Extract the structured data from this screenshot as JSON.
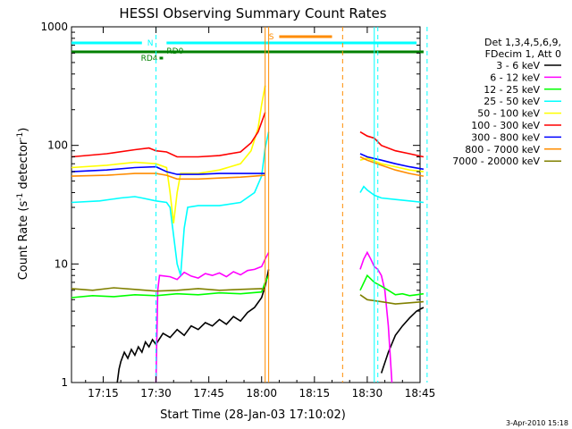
{
  "chart_data": {
    "type": "line",
    "title": "HESSI Observing Summary Count Rates",
    "xlabel": "Start Time (28-Jan-03 17:10:02)",
    "ylabel_main": "Count Rate (s",
    "ylabel_sup1": "-1",
    "ylabel_mid": " detector",
    "ylabel_sup2": "-1",
    "ylabel_end": ")",
    "footer": "3-Apr-2010 15:18",
    "yscale": "log",
    "ylim": [
      1,
      1000
    ],
    "xlim_min": [
      -4,
      95
    ],
    "x_ticks": [
      {
        "m": 5,
        "label": "17:15"
      },
      {
        "m": 20,
        "label": "17:30"
      },
      {
        "m": 35,
        "label": "17:45"
      },
      {
        "m": 50,
        "label": "18:00"
      },
      {
        "m": 65,
        "label": "18:15"
      },
      {
        "m": 80,
        "label": "18:30"
      },
      {
        "m": 95,
        "label": "18:45"
      }
    ],
    "y_ticks": [
      {
        "v": 1,
        "label": "1"
      },
      {
        "v": 10,
        "label": "10"
      },
      {
        "v": 100,
        "label": "100"
      },
      {
        "v": 1000,
        "label": "1000"
      }
    ],
    "legend_header": [
      "Det 1,3,4,5,6,9,",
      "FDecim 1, Att 0"
    ],
    "legend_position": "right",
    "series": [
      {
        "name": "3 - 6 keV",
        "color": "#000000",
        "segments": [
          [
            [
              9,
              1
            ],
            [
              9.5,
              1.3
            ],
            [
              10,
              1.5
            ],
            [
              11,
              1.8
            ],
            [
              12,
              1.6
            ],
            [
              13,
              1.9
            ],
            [
              14,
              1.7
            ],
            [
              15,
              2.0
            ],
            [
              16,
              1.8
            ],
            [
              17,
              2.2
            ],
            [
              18,
              2.0
            ],
            [
              19,
              2.3
            ],
            [
              20,
              2.1
            ],
            [
              22,
              2.6
            ],
            [
              24,
              2.4
            ],
            [
              26,
              2.8
            ],
            [
              28,
              2.5
            ],
            [
              30,
              3.0
            ],
            [
              32,
              2.8
            ],
            [
              34,
              3.2
            ],
            [
              36,
              3.0
            ],
            [
              38,
              3.4
            ],
            [
              40,
              3.1
            ],
            [
              42,
              3.6
            ],
            [
              44,
              3.3
            ],
            [
              46,
              3.9
            ],
            [
              48,
              4.3
            ],
            [
              50,
              5.2
            ],
            [
              51,
              6.5
            ],
            [
              52,
              9.0
            ]
          ],
          [
            [
              84,
              1.2
            ],
            [
              86,
              1.8
            ],
            [
              88,
              2.5
            ],
            [
              90,
              3.0
            ],
            [
              92,
              3.5
            ],
            [
              94,
              4.0
            ],
            [
              96,
              4.3
            ]
          ]
        ]
      },
      {
        "name": "6 - 12 keV",
        "color": "#ff00ff",
        "segments": [
          [
            [
              20,
              1
            ],
            [
              20.5,
              6.0
            ],
            [
              21,
              8.0
            ],
            [
              24,
              7.8
            ],
            [
              26,
              7.4
            ],
            [
              28,
              8.5
            ],
            [
              30,
              7.9
            ],
            [
              32,
              7.6
            ],
            [
              34,
              8.3
            ],
            [
              36,
              8.0
            ],
            [
              38,
              8.4
            ],
            [
              40,
              7.8
            ],
            [
              42,
              8.6
            ],
            [
              44,
              8.1
            ],
            [
              46,
              8.8
            ],
            [
              48,
              9.0
            ],
            [
              50,
              9.5
            ],
            [
              51,
              11.0
            ],
            [
              52,
              12.5
            ]
          ],
          [
            [
              78,
              9.0
            ],
            [
              79,
              11.0
            ],
            [
              80,
              12.5
            ],
            [
              81,
              11.0
            ],
            [
              82,
              9.5
            ],
            [
              83,
              9.0
            ],
            [
              84,
              8.0
            ],
            [
              85,
              6.0
            ],
            [
              86,
              3.0
            ],
            [
              87,
              1.0
            ]
          ]
        ]
      },
      {
        "name": "12 - 25 keV",
        "color": "#00ff00",
        "segments": [
          [
            [
              -4,
              5.2
            ],
            [
              2,
              5.4
            ],
            [
              8,
              5.3
            ],
            [
              14,
              5.5
            ],
            [
              20,
              5.4
            ],
            [
              26,
              5.6
            ],
            [
              32,
              5.5
            ],
            [
              38,
              5.7
            ],
            [
              44,
              5.6
            ],
            [
              50,
              5.8
            ],
            [
              51,
              7.0
            ],
            [
              52,
              8.0
            ]
          ],
          [
            [
              78,
              6.0
            ],
            [
              80,
              8.0
            ],
            [
              82,
              7.0
            ],
            [
              84,
              6.5
            ],
            [
              86,
              6.0
            ],
            [
              88,
              5.5
            ],
            [
              90,
              5.6
            ],
            [
              92,
              5.4
            ],
            [
              94,
              5.5
            ],
            [
              96,
              5.6
            ]
          ]
        ]
      },
      {
        "name": "25 - 50 keV",
        "color": "#00ffff",
        "segments": [
          [
            [
              -4,
              33
            ],
            [
              4,
              34
            ],
            [
              10,
              36
            ],
            [
              14,
              37
            ],
            [
              16,
              36
            ],
            [
              20,
              34
            ],
            [
              23,
              33
            ],
            [
              24,
              30
            ],
            [
              26,
              10
            ],
            [
              27,
              8.0
            ],
            [
              28,
              20
            ],
            [
              29,
              30
            ],
            [
              32,
              31
            ],
            [
              38,
              31
            ],
            [
              44,
              33
            ],
            [
              48,
              40
            ],
            [
              50,
              55
            ],
            [
              51,
              95
            ],
            [
              52,
              130
            ]
          ],
          [
            [
              78,
              40
            ],
            [
              79,
              45
            ],
            [
              80,
              42
            ],
            [
              82,
              38
            ],
            [
              84,
              36
            ],
            [
              88,
              35
            ],
            [
              92,
              34
            ],
            [
              96,
              33
            ]
          ]
        ]
      },
      {
        "name": "50 - 100 keV",
        "color": "#ffff00",
        "segments": [
          [
            [
              -4,
              65
            ],
            [
              6,
              68
            ],
            [
              14,
              72
            ],
            [
              20,
              70
            ],
            [
              23,
              65
            ],
            [
              24,
              40
            ],
            [
              25,
              22
            ],
            [
              26,
              40
            ],
            [
              27,
              58
            ],
            [
              32,
              58
            ],
            [
              38,
              62
            ],
            [
              44,
              70
            ],
            [
              47,
              90
            ],
            [
              49,
              140
            ],
            [
              50,
              220
            ],
            [
              51,
              320
            ]
          ],
          [
            [
              78,
              75
            ],
            [
              80,
              78
            ],
            [
              84,
              70
            ],
            [
              88,
              66
            ],
            [
              92,
              62
            ],
            [
              96,
              60
            ]
          ]
        ]
      },
      {
        "name": "100 - 300 keV",
        "color": "#ff0000",
        "segments": [
          [
            [
              -4,
              80
            ],
            [
              6,
              85
            ],
            [
              14,
              92
            ],
            [
              18,
              95
            ],
            [
              20,
              90
            ],
            [
              23,
              88
            ],
            [
              26,
              80
            ],
            [
              32,
              80
            ],
            [
              38,
              82
            ],
            [
              44,
              88
            ],
            [
              47,
              105
            ],
            [
              49,
              130
            ],
            [
              51,
              190
            ]
          ],
          [
            [
              78,
              130
            ],
            [
              80,
              120
            ],
            [
              82,
              115
            ],
            [
              84,
              100
            ],
            [
              88,
              90
            ],
            [
              92,
              85
            ],
            [
              96,
              80
            ]
          ]
        ]
      },
      {
        "name": "300 - 800 keV",
        "color": "#0000ff",
        "segments": [
          [
            [
              -4,
              60
            ],
            [
              6,
              62
            ],
            [
              14,
              65
            ],
            [
              20,
              66
            ],
            [
              23,
              60
            ],
            [
              26,
              57
            ],
            [
              32,
              57
            ],
            [
              38,
              58
            ],
            [
              44,
              58
            ],
            [
              48,
              58
            ],
            [
              51,
              58
            ]
          ],
          [
            [
              78,
              85
            ],
            [
              80,
              80
            ],
            [
              84,
              75
            ],
            [
              88,
              70
            ],
            [
              92,
              66
            ],
            [
              96,
              63
            ]
          ]
        ]
      },
      {
        "name": "800 - 7000 keV",
        "color": "#ff8c00",
        "segments": [
          [
            [
              -4,
              55
            ],
            [
              6,
              56
            ],
            [
              14,
              58
            ],
            [
              20,
              58
            ],
            [
              23,
              56
            ],
            [
              26,
              52
            ],
            [
              32,
              52
            ],
            [
              38,
              53
            ],
            [
              44,
              54
            ],
            [
              48,
              55
            ],
            [
              51,
              56
            ]
          ],
          [
            [
              78,
              80
            ],
            [
              80,
              75
            ],
            [
              84,
              68
            ],
            [
              88,
              62
            ],
            [
              92,
              58
            ],
            [
              96,
              55
            ]
          ]
        ]
      },
      {
        "name": "7000 - 20000 keV",
        "color": "#808000",
        "segments": [
          [
            [
              -4,
              6.2
            ],
            [
              2,
              6.0
            ],
            [
              8,
              6.3
            ],
            [
              14,
              6.1
            ],
            [
              20,
              5.9
            ],
            [
              26,
              6.0
            ],
            [
              32,
              6.2
            ],
            [
              38,
              6.0
            ],
            [
              44,
              6.1
            ],
            [
              50,
              6.2
            ],
            [
              51,
              6.0
            ]
          ],
          [
            [
              78,
              5.5
            ],
            [
              80,
              5.0
            ],
            [
              84,
              4.8
            ],
            [
              88,
              4.6
            ],
            [
              92,
              4.7
            ],
            [
              96,
              4.8
            ]
          ]
        ]
      }
    ],
    "flags": [
      {
        "label": "N",
        "color": "#00ffff",
        "segments": [
          [
            -4,
            16
          ],
          [
            23,
            94
          ]
        ]
      },
      {
        "label": "RD0",
        "color": "#008000",
        "segments": [
          [
            -4,
            96
          ]
        ]
      },
      {
        "label": "RD4",
        "color": "#008000",
        "segments": [
          [
            21,
            22
          ]
        ]
      },
      {
        "label": "S",
        "color": "#ff8c00",
        "segments": [
          [
            55,
            70
          ]
        ]
      }
    ],
    "vlines": [
      {
        "m": 20,
        "color": "#00ffff",
        "dash": true
      },
      {
        "m": 51,
        "color": "#ff8c00",
        "dash": false
      },
      {
        "m": 52,
        "color": "#ff8c00",
        "dash": false
      },
      {
        "m": 73,
        "color": "#ff8c00",
        "dash": true
      },
      {
        "m": 82,
        "color": "#00ffff",
        "dash": false
      },
      {
        "m": 83,
        "color": "#00ffff",
        "dash": true
      },
      {
        "m": 97,
        "color": "#00ffff",
        "dash": true
      }
    ]
  }
}
